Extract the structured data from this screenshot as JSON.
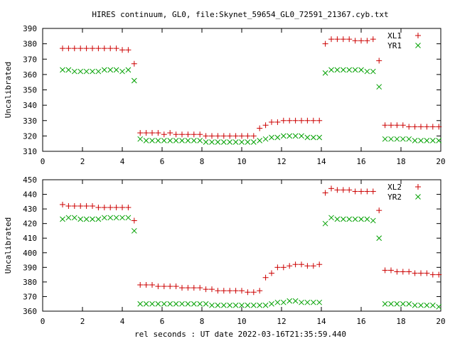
{
  "title": "HIRES continuum, GL0, file:Skynet_59654_GL0_72591_21367.cyb.txt",
  "xlabel": "rel seconds : UT date 2022-03-16T21:35:59.440",
  "colors": {
    "series1": "#cc0000",
    "series2": "#00a000",
    "axis": "#000000"
  },
  "chart_data": [
    {
      "type": "scatter",
      "ylabel": "Uncalibrated",
      "xlim": [
        0,
        20
      ],
      "ylim": [
        310,
        390
      ],
      "xticks": [
        0,
        2,
        4,
        6,
        8,
        10,
        12,
        14,
        16,
        18,
        20
      ],
      "yticks": [
        310,
        320,
        330,
        340,
        350,
        360,
        370,
        380,
        390
      ],
      "legend_position": "top-right",
      "series": [
        {
          "name": "XL1",
          "marker": "+",
          "x": [
            1.0,
            1.3,
            1.6,
            1.9,
            2.2,
            2.5,
            2.8,
            3.1,
            3.4,
            3.7,
            4.0,
            4.3,
            4.6,
            4.9,
            5.2,
            5.5,
            5.8,
            6.1,
            6.4,
            6.7,
            7.0,
            7.3,
            7.6,
            7.9,
            8.2,
            8.5,
            8.8,
            9.1,
            9.4,
            9.7,
            10.0,
            10.3,
            10.6,
            10.9,
            11.2,
            11.5,
            11.8,
            12.1,
            12.4,
            12.7,
            13.0,
            13.3,
            13.6,
            13.9,
            14.2,
            14.5,
            14.8,
            15.1,
            15.4,
            15.7,
            16.0,
            16.3,
            16.6,
            16.9,
            17.2,
            17.5,
            17.8,
            18.1,
            18.4,
            18.7,
            19.0,
            19.3,
            19.6,
            19.9
          ],
          "y": [
            377,
            377,
            377,
            377,
            377,
            377,
            377,
            377,
            377,
            377,
            376,
            376,
            367,
            322,
            322,
            322,
            322,
            321,
            322,
            321,
            321,
            321,
            321,
            321,
            320,
            320,
            320,
            320,
            320,
            320,
            320,
            320,
            320,
            325,
            327,
            329,
            329,
            330,
            330,
            330,
            330,
            330,
            330,
            330,
            380,
            383,
            383,
            383,
            383,
            382,
            382,
            382,
            383,
            369,
            327,
            327,
            327,
            327,
            326,
            326,
            326,
            326,
            326,
            326
          ]
        },
        {
          "name": "YR1",
          "marker": "x",
          "x": [
            1.0,
            1.3,
            1.6,
            1.9,
            2.2,
            2.5,
            2.8,
            3.1,
            3.4,
            3.7,
            4.0,
            4.3,
            4.6,
            4.9,
            5.2,
            5.5,
            5.8,
            6.1,
            6.4,
            6.7,
            7.0,
            7.3,
            7.6,
            7.9,
            8.2,
            8.5,
            8.8,
            9.1,
            9.4,
            9.7,
            10.0,
            10.3,
            10.6,
            10.9,
            11.2,
            11.5,
            11.8,
            12.1,
            12.4,
            12.7,
            13.0,
            13.3,
            13.6,
            13.9,
            14.2,
            14.5,
            14.8,
            15.1,
            15.4,
            15.7,
            16.0,
            16.3,
            16.6,
            16.9,
            17.2,
            17.5,
            17.8,
            18.1,
            18.4,
            18.7,
            19.0,
            19.3,
            19.6,
            19.9
          ],
          "y": [
            363,
            363,
            362,
            362,
            362,
            362,
            362,
            363,
            363,
            363,
            362,
            363,
            356,
            318,
            317,
            317,
            317,
            317,
            317,
            317,
            317,
            317,
            317,
            317,
            316,
            316,
            316,
            316,
            316,
            316,
            316,
            316,
            316,
            317,
            318,
            319,
            319,
            320,
            320,
            320,
            320,
            319,
            319,
            319,
            361,
            363,
            363,
            363,
            363,
            363,
            363,
            362,
            362,
            352,
            318,
            318,
            318,
            318,
            318,
            317,
            317,
            317,
            317,
            317
          ]
        }
      ]
    },
    {
      "type": "scatter",
      "ylabel": "Uncalibrated",
      "xlabel": "rel seconds : UT date 2022-03-16T21:35:59.440",
      "xlim": [
        0,
        20
      ],
      "ylim": [
        360,
        450
      ],
      "xticks": [
        0,
        2,
        4,
        6,
        8,
        10,
        12,
        14,
        16,
        18,
        20
      ],
      "yticks": [
        360,
        370,
        380,
        390,
        400,
        410,
        420,
        430,
        440,
        450
      ],
      "legend_position": "top-right",
      "series": [
        {
          "name": "XL2",
          "marker": "+",
          "x": [
            1.0,
            1.3,
            1.6,
            1.9,
            2.2,
            2.5,
            2.8,
            3.1,
            3.4,
            3.7,
            4.0,
            4.3,
            4.6,
            4.9,
            5.2,
            5.5,
            5.8,
            6.1,
            6.4,
            6.7,
            7.0,
            7.3,
            7.6,
            7.9,
            8.2,
            8.5,
            8.8,
            9.1,
            9.4,
            9.7,
            10.0,
            10.3,
            10.6,
            10.9,
            11.2,
            11.5,
            11.8,
            12.1,
            12.4,
            12.7,
            13.0,
            13.3,
            13.6,
            13.9,
            14.2,
            14.5,
            14.8,
            15.1,
            15.4,
            15.7,
            16.0,
            16.3,
            16.6,
            16.9,
            17.2,
            17.5,
            17.8,
            18.1,
            18.4,
            18.7,
            19.0,
            19.3,
            19.6,
            19.9
          ],
          "y": [
            433,
            432,
            432,
            432,
            432,
            432,
            431,
            431,
            431,
            431,
            431,
            431,
            422,
            378,
            378,
            378,
            377,
            377,
            377,
            377,
            376,
            376,
            376,
            376,
            375,
            375,
            374,
            374,
            374,
            374,
            374,
            373,
            373,
            374,
            383,
            386,
            390,
            390,
            391,
            392,
            392,
            391,
            391,
            392,
            441,
            444,
            443,
            443,
            443,
            442,
            442,
            442,
            442,
            429,
            388,
            388,
            387,
            387,
            387,
            386,
            386,
            386,
            385,
            385
          ]
        },
        {
          "name": "YR2",
          "marker": "x",
          "x": [
            1.0,
            1.3,
            1.6,
            1.9,
            2.2,
            2.5,
            2.8,
            3.1,
            3.4,
            3.7,
            4.0,
            4.3,
            4.6,
            4.9,
            5.2,
            5.5,
            5.8,
            6.1,
            6.4,
            6.7,
            7.0,
            7.3,
            7.6,
            7.9,
            8.2,
            8.5,
            8.8,
            9.1,
            9.4,
            9.7,
            10.0,
            10.3,
            10.6,
            10.9,
            11.2,
            11.5,
            11.8,
            12.1,
            12.4,
            12.7,
            13.0,
            13.3,
            13.6,
            13.9,
            14.2,
            14.5,
            14.8,
            15.1,
            15.4,
            15.7,
            16.0,
            16.3,
            16.6,
            16.9,
            17.2,
            17.5,
            17.8,
            18.1,
            18.4,
            18.7,
            19.0,
            19.3,
            19.6,
            19.9
          ],
          "y": [
            423,
            424,
            424,
            423,
            423,
            423,
            423,
            424,
            424,
            424,
            424,
            424,
            415,
            365,
            365,
            365,
            365,
            365,
            365,
            365,
            365,
            365,
            365,
            365,
            365,
            364,
            364,
            364,
            364,
            364,
            364,
            364,
            364,
            364,
            364,
            365,
            366,
            366,
            367,
            367,
            366,
            366,
            366,
            366,
            420,
            424,
            423,
            423,
            423,
            423,
            423,
            423,
            422,
            410,
            365,
            365,
            365,
            365,
            365,
            364,
            364,
            364,
            364,
            363
          ]
        }
      ]
    }
  ]
}
